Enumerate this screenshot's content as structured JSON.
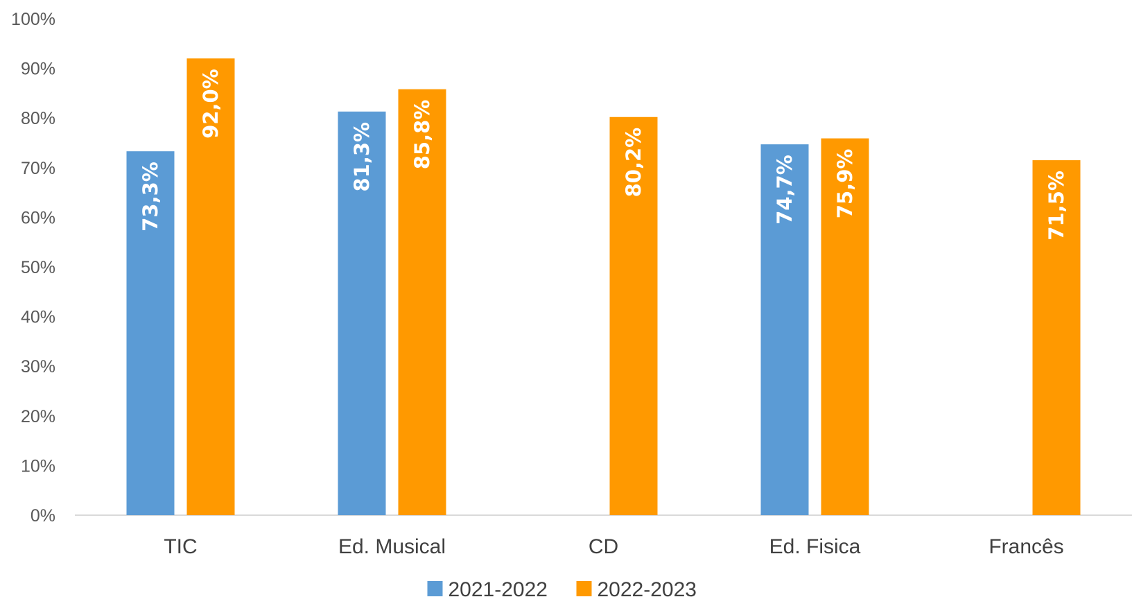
{
  "chart_data": {
    "type": "bar",
    "categories": [
      "TIC",
      "Ed. Musical",
      "CD",
      "Ed. Fisica",
      "Francês"
    ],
    "series": [
      {
        "name": "2021-2022",
        "color": "#5b9bd5",
        "values": [
          73.3,
          81.3,
          null,
          74.7,
          null
        ],
        "labels": [
          "73,3%",
          "81,3%",
          "",
          "74,7%",
          ""
        ]
      },
      {
        "name": "2022-2023",
        "color": "#ff9900",
        "values": [
          92.0,
          85.8,
          80.2,
          75.9,
          71.5
        ],
        "labels": [
          "92,0%",
          "85,8%",
          "80,2%",
          "75,9%",
          "71,5%"
        ]
      }
    ],
    "ylim": [
      0,
      100
    ],
    "yticks": [
      "0%",
      "10%",
      "20%",
      "30%",
      "40%",
      "50%",
      "60%",
      "70%",
      "80%",
      "90%",
      "100%"
    ],
    "grid": false,
    "legend": "bottom-center"
  }
}
